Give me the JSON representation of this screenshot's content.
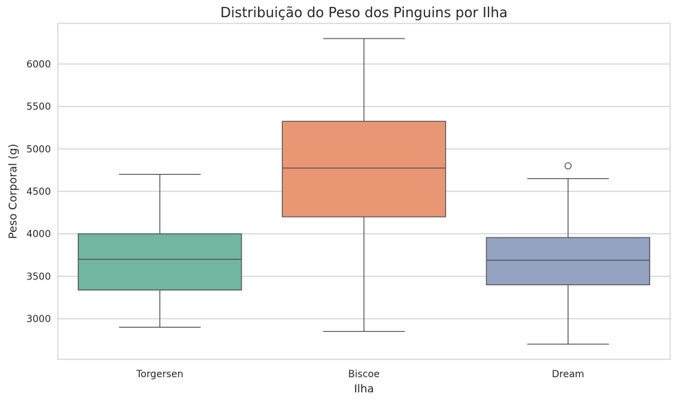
{
  "chart_data": {
    "type": "box",
    "title": "Distribuição do Peso dos Pinguins por Ilha",
    "xlabel": "Ilha",
    "ylabel": "Peso Corporal (g)",
    "ylim": [
      2500,
      6450
    ],
    "yticks": [
      3000,
      3500,
      4000,
      4500,
      5000,
      5500,
      6000
    ],
    "grid": true,
    "categories": [
      "Torgersen",
      "Biscoe",
      "Dream"
    ],
    "boxes": [
      {
        "category": "Torgersen",
        "whisker_low": 2900,
        "q1": 3338,
        "median": 3700,
        "q3": 4000,
        "whisker_high": 4700,
        "outliers": [],
        "color": "#72b6a1"
      },
      {
        "category": "Biscoe",
        "whisker_low": 2850,
        "q1": 4200,
        "median": 4775,
        "q3": 5325,
        "whisker_high": 6300,
        "outliers": [],
        "color": "#e99675"
      },
      {
        "category": "Dream",
        "whisker_low": 2700,
        "q1": 3400,
        "median": 3688,
        "q3": 3956,
        "whisker_high": 4650,
        "outliers": [
          4800
        ],
        "color": "#95a3c3"
      }
    ]
  }
}
